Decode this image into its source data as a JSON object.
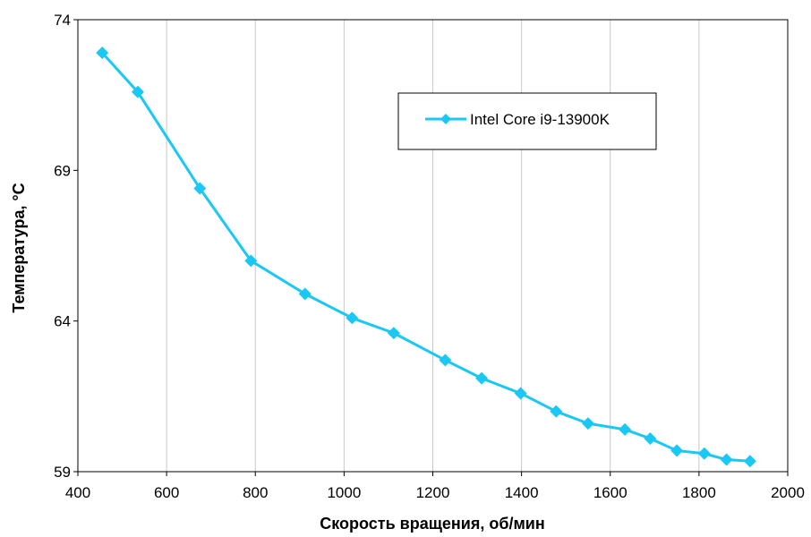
{
  "chart_data": {
    "type": "line",
    "title": "",
    "xlabel": "Скорость вращения, об/мин",
    "ylabel": "Температура, °C",
    "xlim": [
      400,
      2000
    ],
    "ylim": [
      59,
      74
    ],
    "xticks": [
      400,
      600,
      800,
      1000,
      1200,
      1400,
      1600,
      1800,
      2000
    ],
    "yticks": [
      59,
      64,
      69,
      74
    ],
    "grid": "vertical",
    "legend_position": "top-right",
    "series": [
      {
        "name": "Intel Core i9-13900K",
        "color": "#19c8f5",
        "marker": "diamond",
        "x": [
          455,
          535,
          675,
          790,
          912,
          1018,
          1112,
          1228,
          1310,
          1398,
          1478,
          1550,
          1633,
          1690,
          1750,
          1812,
          1862,
          1915
        ],
        "y": [
          72.9,
          71.6,
          68.4,
          66.0,
          64.9,
          64.1,
          63.6,
          62.7,
          62.1,
          61.6,
          61.0,
          60.6,
          60.4,
          60.1,
          59.7,
          59.6,
          59.4,
          59.35
        ]
      }
    ]
  }
}
